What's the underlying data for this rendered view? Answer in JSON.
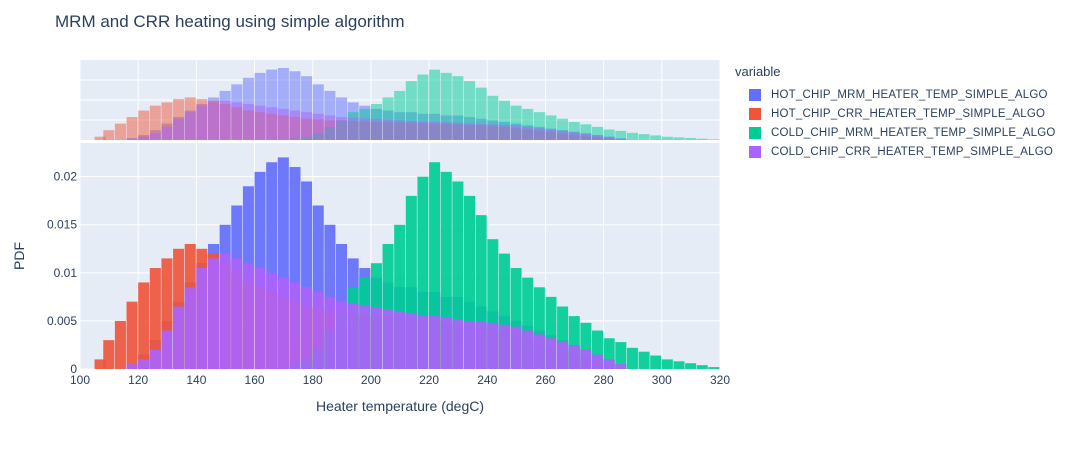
{
  "title": "MRM and CRR heating using simple algorithm",
  "legend": {
    "title": "variable",
    "items": [
      {
        "label": "HOT_CHIP_MRM_HEATER_TEMP_SIMPLE_ALGO",
        "color": "#636efa"
      },
      {
        "label": "HOT_CHIP_CRR_HEATER_TEMP_SIMPLE_ALGO",
        "color": "#ef553b"
      },
      {
        "label": "COLD_CHIP_MRM_HEATER_TEMP_SIMPLE_ALGO",
        "color": "#00cc96"
      },
      {
        "label": "COLD_CHIP_CRR_HEATER_TEMP_SIMPLE_ALGO",
        "color": "#ab63fa"
      }
    ]
  },
  "chart_data": {
    "type": "bar",
    "title": "MRM and CRR heating using simple algorithm",
    "xlabel": "Heater temperature (degC)",
    "ylabel": "PDF",
    "xlim": [
      100,
      320
    ],
    "ylim": [
      0,
      0.0235
    ],
    "xticks": [
      "100",
      "120",
      "140",
      "160",
      "180",
      "200",
      "220",
      "240",
      "260",
      "280",
      "300",
      "320"
    ],
    "yticks": [
      "0",
      "0.005",
      "0.01",
      "0.015",
      "0.02"
    ],
    "grid": true,
    "legend_position": "right",
    "marginal": "histogram",
    "series": [
      {
        "name": "HOT_CHIP_MRM_HEATER_TEMP_SIMPLE_ALGO",
        "color": "#636efa",
        "x": [
          116,
          120,
          124,
          128,
          132,
          136,
          140,
          144,
          148,
          152,
          156,
          160,
          164,
          168,
          172,
          176,
          180,
          184,
          188,
          192,
          196,
          200,
          204,
          208,
          212,
          216,
          220,
          224,
          228,
          232,
          236,
          240,
          244,
          248,
          252,
          256,
          260,
          264,
          268,
          272,
          276,
          280,
          284
        ],
        "y": [
          0.0005,
          0.0015,
          0.003,
          0.005,
          0.007,
          0.009,
          0.011,
          0.013,
          0.015,
          0.017,
          0.019,
          0.0205,
          0.0215,
          0.022,
          0.021,
          0.0195,
          0.017,
          0.015,
          0.013,
          0.0115,
          0.0105,
          0.0095,
          0.009,
          0.0085,
          0.0085,
          0.008,
          0.008,
          0.0075,
          0.0075,
          0.007,
          0.0065,
          0.006,
          0.0055,
          0.005,
          0.0045,
          0.004,
          0.0035,
          0.003,
          0.0025,
          0.002,
          0.0015,
          0.001,
          0.0005
        ]
      },
      {
        "name": "HOT_CHIP_CRR_HEATER_TEMP_SIMPLE_ALGO",
        "color": "#ef553b",
        "x": [
          105,
          108,
          112,
          116,
          120,
          124,
          128,
          132,
          136,
          140,
          144,
          148,
          152,
          156,
          160,
          164,
          168,
          172,
          176,
          180,
          184,
          188,
          192,
          196,
          200,
          204,
          208,
          212,
          216,
          220,
          224,
          228,
          232,
          236,
          240,
          244,
          248,
          252,
          256,
          260,
          264,
          268,
          272,
          276,
          280
        ],
        "y": [
          0.001,
          0.003,
          0.005,
          0.007,
          0.009,
          0.0105,
          0.0115,
          0.0125,
          0.013,
          0.0125,
          0.012,
          0.011,
          0.01,
          0.009,
          0.0085,
          0.008,
          0.0075,
          0.007,
          0.0065,
          0.0063,
          0.006,
          0.006,
          0.0058,
          0.0056,
          0.0055,
          0.0054,
          0.0053,
          0.0052,
          0.0051,
          0.005,
          0.005,
          0.0048,
          0.0046,
          0.0044,
          0.0042,
          0.004,
          0.0036,
          0.0032,
          0.0028,
          0.0024,
          0.002,
          0.0016,
          0.0012,
          0.0008,
          0.0004
        ]
      },
      {
        "name": "COLD_CHIP_MRM_HEATER_TEMP_SIMPLE_ALGO",
        "color": "#00cc96",
        "x": [
          172,
          176,
          180,
          184,
          188,
          192,
          196,
          200,
          204,
          208,
          212,
          216,
          220,
          224,
          228,
          232,
          236,
          240,
          244,
          248,
          252,
          256,
          260,
          264,
          268,
          272,
          276,
          280,
          284,
          288,
          292,
          296,
          300,
          304,
          308,
          312,
          316
        ],
        "y": [
          0.0005,
          0.001,
          0.002,
          0.004,
          0.006,
          0.0085,
          0.0095,
          0.011,
          0.013,
          0.015,
          0.018,
          0.02,
          0.0215,
          0.0205,
          0.0195,
          0.018,
          0.016,
          0.0135,
          0.012,
          0.0105,
          0.0095,
          0.0085,
          0.0075,
          0.0065,
          0.0055,
          0.0048,
          0.004,
          0.0032,
          0.0028,
          0.0022,
          0.0018,
          0.0014,
          0.001,
          0.0008,
          0.0006,
          0.0004,
          0.0002
        ]
      },
      {
        "name": "COLD_CHIP_CRR_HEATER_TEMP_SIMPLE_ALGO",
        "color": "#ab63fa",
        "x": [
          116,
          120,
          124,
          128,
          132,
          136,
          140,
          144,
          148,
          152,
          156,
          160,
          164,
          168,
          172,
          176,
          180,
          184,
          188,
          192,
          196,
          200,
          204,
          208,
          212,
          216,
          220,
          224,
          228,
          232,
          236,
          240,
          244,
          248,
          252,
          256,
          260,
          264,
          268,
          272,
          276,
          280,
          284
        ],
        "y": [
          0.0005,
          0.001,
          0.002,
          0.004,
          0.0065,
          0.0085,
          0.0105,
          0.0115,
          0.012,
          0.0115,
          0.011,
          0.0105,
          0.01,
          0.0095,
          0.009,
          0.0085,
          0.008,
          0.0075,
          0.007,
          0.0068,
          0.0066,
          0.0064,
          0.0062,
          0.006,
          0.0058,
          0.0056,
          0.0055,
          0.0054,
          0.0052,
          0.005,
          0.0049,
          0.0048,
          0.0046,
          0.0044,
          0.004,
          0.0036,
          0.0032,
          0.0028,
          0.0024,
          0.002,
          0.0015,
          0.001,
          0.0005
        ]
      }
    ]
  }
}
